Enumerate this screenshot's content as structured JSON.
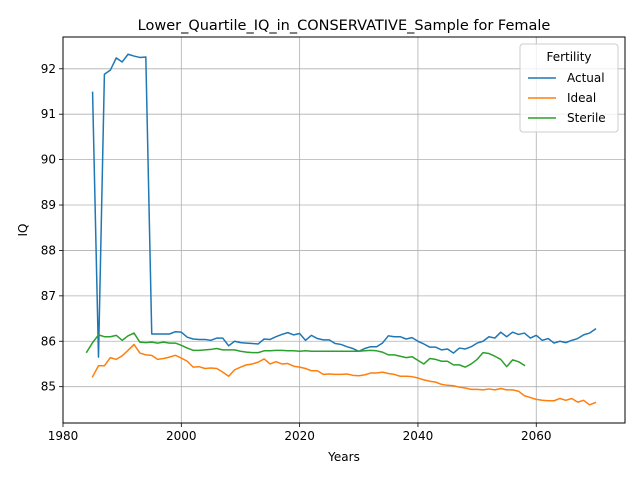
{
  "chart_data": {
    "type": "line",
    "title": "Lower_Quartile_IQ_in_CONSERVATIVE_Sample for Female",
    "xlabel": "Years",
    "ylabel": "IQ",
    "xlim": [
      1980,
      2075
    ],
    "ylim": [
      84.2,
      92.7
    ],
    "xticks": [
      1980,
      2000,
      2020,
      2040,
      2060
    ],
    "yticks": [
      85,
      86,
      87,
      88,
      89,
      90,
      91,
      92
    ],
    "grid": true,
    "legend": {
      "title": "Fertility",
      "placement": "top-right"
    },
    "series": [
      {
        "name": "Actual",
        "color": "#1f77b4",
        "x": [
          1985,
          1986,
          1987,
          1988,
          1989,
          1990,
          1991,
          1992,
          1993,
          1994,
          1995,
          1996,
          1997,
          1998,
          1999,
          2000,
          2001,
          2002,
          2003,
          2004,
          2005,
          2006,
          2007,
          2008,
          2009,
          2010,
          2011,
          2012,
          2013,
          2014,
          2015,
          2016,
          2017,
          2018,
          2019,
          2020,
          2021,
          2022,
          2023,
          2024,
          2025,
          2026,
          2027,
          2028,
          2029,
          2030,
          2031,
          2032,
          2033,
          2034,
          2035,
          2036,
          2037,
          2038,
          2039,
          2040,
          2041,
          2042,
          2043,
          2044,
          2045,
          2046,
          2047,
          2048,
          2049,
          2050,
          2051,
          2052,
          2053,
          2054,
          2055,
          2056,
          2057,
          2058,
          2059,
          2060,
          2061,
          2062,
          2063,
          2064,
          2065,
          2066,
          2067,
          2068,
          2069,
          2070
        ],
        "values": [
          91.48,
          85.65,
          91.88,
          91.97,
          92.24,
          92.15,
          92.32,
          92.28,
          92.25,
          92.26,
          86.16,
          86.16,
          86.16,
          86.16,
          86.21,
          86.2,
          86.09,
          86.05,
          86.04,
          86.04,
          86.02,
          86.07,
          86.07,
          85.9,
          86.0,
          85.97,
          85.96,
          85.95,
          85.94,
          86.05,
          86.04,
          86.1,
          86.15,
          86.19,
          86.14,
          86.17,
          86.02,
          86.13,
          86.06,
          86.03,
          86.03,
          85.95,
          85.93,
          85.88,
          85.84,
          85.78,
          85.84,
          85.88,
          85.88,
          85.96,
          86.12,
          86.1,
          86.1,
          86.05,
          86.08,
          86.0,
          85.94,
          85.87,
          85.87,
          85.81,
          85.83,
          85.74,
          85.85,
          85.83,
          85.88,
          85.96,
          86.0,
          86.1,
          86.07,
          86.2,
          86.1,
          86.2,
          86.15,
          86.18,
          86.07,
          86.13,
          86.02,
          86.06,
          85.96,
          86.0,
          85.97,
          86.02,
          86.06,
          86.14,
          86.18,
          86.27
        ]
      },
      {
        "name": "Ideal",
        "color": "#ff7f0e",
        "x": [
          1985,
          1986,
          1987,
          1988,
          1989,
          1990,
          1991,
          1992,
          1993,
          1994,
          1995,
          1996,
          1997,
          1998,
          1999,
          2000,
          2001,
          2002,
          2003,
          2004,
          2005,
          2006,
          2007,
          2008,
          2009,
          2010,
          2011,
          2012,
          2013,
          2014,
          2015,
          2016,
          2017,
          2018,
          2019,
          2020,
          2021,
          2022,
          2023,
          2024,
          2025,
          2026,
          2027,
          2028,
          2029,
          2030,
          2031,
          2032,
          2033,
          2034,
          2035,
          2036,
          2037,
          2038,
          2039,
          2040,
          2041,
          2042,
          2043,
          2044,
          2045,
          2046,
          2047,
          2048,
          2049,
          2050,
          2051,
          2052,
          2053,
          2054,
          2055,
          2056,
          2057,
          2058,
          2059,
          2060,
          2061,
          2062,
          2063,
          2064,
          2065,
          2066,
          2067,
          2068,
          2069,
          2070
        ],
        "values": [
          85.22,
          85.46,
          85.46,
          85.64,
          85.6,
          85.68,
          85.8,
          85.93,
          85.74,
          85.7,
          85.69,
          85.6,
          85.62,
          85.65,
          85.69,
          85.63,
          85.56,
          85.43,
          85.44,
          85.4,
          85.41,
          85.4,
          85.32,
          85.23,
          85.37,
          85.43,
          85.48,
          85.5,
          85.54,
          85.61,
          85.5,
          85.55,
          85.5,
          85.51,
          85.45,
          85.43,
          85.4,
          85.35,
          85.35,
          85.27,
          85.28,
          85.27,
          85.27,
          85.28,
          85.25,
          85.24,
          85.26,
          85.3,
          85.3,
          85.32,
          85.29,
          85.27,
          85.23,
          85.23,
          85.22,
          85.19,
          85.15,
          85.12,
          85.1,
          85.05,
          85.03,
          85.02,
          84.99,
          84.97,
          84.94,
          84.94,
          84.93,
          84.95,
          84.93,
          84.96,
          84.93,
          84.93,
          84.9,
          84.8,
          84.76,
          84.72,
          84.7,
          84.69,
          84.69,
          84.74,
          84.7,
          84.74,
          84.66,
          84.7,
          84.6,
          84.65
        ]
      },
      {
        "name": "Sterile",
        "color": "#2ca02c",
        "x": [
          1984,
          1985,
          1986,
          1987,
          1988,
          1989,
          1990,
          1991,
          1992,
          1993,
          1994,
          1995,
          1996,
          1997,
          1998,
          1999,
          2000,
          2001,
          2002,
          2003,
          2004,
          2005,
          2006,
          2007,
          2008,
          2009,
          2010,
          2011,
          2012,
          2013,
          2014,
          2015,
          2016,
          2017,
          2018,
          2019,
          2020,
          2021,
          2022,
          2023,
          2024,
          2025,
          2026,
          2027,
          2028,
          2029,
          2030,
          2031,
          2032,
          2033,
          2034,
          2035,
          2036,
          2037,
          2038,
          2039,
          2040,
          2041,
          2042,
          2043,
          2044,
          2045,
          2046,
          2047,
          2048,
          2049,
          2050,
          2051,
          2052,
          2053,
          2054,
          2055,
          2056,
          2057,
          2058
        ],
        "values": [
          85.76,
          85.97,
          86.14,
          86.1,
          86.1,
          86.13,
          86.02,
          86.12,
          86.18,
          85.98,
          85.97,
          85.98,
          85.96,
          85.98,
          85.96,
          85.96,
          85.91,
          85.85,
          85.8,
          85.8,
          85.81,
          85.82,
          85.84,
          85.81,
          85.81,
          85.81,
          85.78,
          85.76,
          85.75,
          85.75,
          85.79,
          85.79,
          85.8,
          85.8,
          85.79,
          85.79,
          85.78,
          85.79,
          85.78,
          85.78,
          85.78,
          85.78,
          85.78,
          85.78,
          85.78,
          85.78,
          85.78,
          85.79,
          85.8,
          85.79,
          85.76,
          85.7,
          85.7,
          85.67,
          85.64,
          85.66,
          85.58,
          85.5,
          85.62,
          85.6,
          85.56,
          85.56,
          85.48,
          85.48,
          85.43,
          85.5,
          85.6,
          85.75,
          85.73,
          85.67,
          85.6,
          85.44,
          85.59,
          85.55,
          85.47
        ]
      }
    ]
  }
}
